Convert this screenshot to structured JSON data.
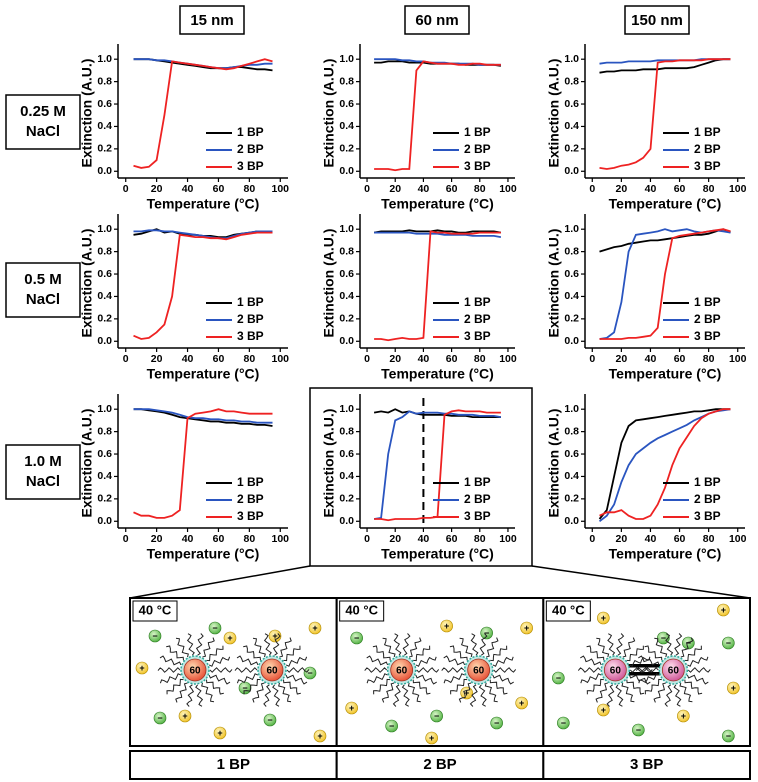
{
  "columns": [
    "15 nm",
    "60 nm",
    "150 nm"
  ],
  "rows": [
    [
      "0.25 M",
      "NaCl"
    ],
    [
      "0.5 M",
      "NaCl"
    ],
    [
      "1.0 M",
      "NaCl"
    ]
  ],
  "chart_data": [
    {
      "type": "line",
      "xlabel": "Temperature (°C)",
      "ylabel": "Extinction (A.U.)",
      "legend": "lower right",
      "x": [
        5,
        10,
        15,
        20,
        25,
        30,
        35,
        40,
        45,
        50,
        55,
        60,
        65,
        70,
        75,
        80,
        85,
        90,
        95
      ],
      "xlim": [
        -5,
        105
      ],
      "ylim": [
        -0.06,
        1.1
      ],
      "xticks": [
        0,
        20,
        40,
        60,
        80,
        100
      ],
      "yticks": [
        {
          "value": 0,
          "label": "0.0"
        },
        0.2,
        0.4,
        0.6,
        0.8,
        {
          "value": 1,
          "label": "1.0"
        }
      ],
      "series": [
        {
          "name": "1 BP",
          "color": "#000000",
          "values": [
            1.0,
            1.0,
            1.0,
            0.99,
            0.98,
            0.97,
            0.96,
            0.95,
            0.94,
            0.93,
            0.92,
            0.92,
            0.92,
            0.93,
            0.93,
            0.92,
            0.91,
            0.91,
            0.9
          ]
        },
        {
          "name": "2 BP",
          "color": "#2a55c0",
          "values": [
            1.0,
            1.0,
            1.0,
            0.99,
            0.99,
            0.98,
            0.97,
            0.96,
            0.95,
            0.94,
            0.93,
            0.92,
            0.92,
            0.93,
            0.94,
            0.95,
            0.95,
            0.96,
            0.96
          ]
        },
        {
          "name": "3 BP",
          "color": "#ee2222",
          "values": [
            0.05,
            0.03,
            0.04,
            0.1,
            0.5,
            0.98,
            0.97,
            0.96,
            0.95,
            0.94,
            0.93,
            0.92,
            0.91,
            0.92,
            0.94,
            0.96,
            0.98,
            1.0,
            0.98
          ]
        }
      ]
    },
    {
      "type": "line",
      "xlabel": "Temperature (°C)",
      "ylabel": "Extinction (A.U.)",
      "legend": "lower right",
      "x": [
        5,
        10,
        15,
        20,
        25,
        30,
        35,
        40,
        45,
        50,
        55,
        60,
        65,
        70,
        75,
        80,
        85,
        90,
        95
      ],
      "xlim": [
        -5,
        105
      ],
      "ylim": [
        -0.06,
        1.1
      ],
      "xticks": [
        0,
        20,
        40,
        60,
        80,
        100
      ],
      "yticks": [
        {
          "value": 0,
          "label": "0.0"
        },
        0.2,
        0.4,
        0.6,
        0.8,
        {
          "value": 1,
          "label": "1.0"
        }
      ],
      "series": [
        {
          "name": "1 BP",
          "color": "#000000",
          "values": [
            0.97,
            0.97,
            0.98,
            0.98,
            0.98,
            0.97,
            0.97,
            0.97,
            0.96,
            0.96,
            0.96,
            0.96,
            0.96,
            0.95,
            0.95,
            0.95,
            0.95,
            0.95,
            0.94
          ]
        },
        {
          "name": "2 BP",
          "color": "#2a55c0",
          "values": [
            1.0,
            1.0,
            1.0,
            1.0,
            0.99,
            0.99,
            0.98,
            0.98,
            0.97,
            0.97,
            0.97,
            0.96,
            0.96,
            0.96,
            0.96,
            0.95,
            0.95,
            0.95,
            0.95
          ]
        },
        {
          "name": "3 BP",
          "color": "#ee2222",
          "values": [
            0.02,
            0.02,
            0.02,
            0.01,
            0.02,
            0.02,
            0.9,
            0.98,
            0.97,
            0.96,
            0.96,
            0.96,
            0.95,
            0.95,
            0.96,
            0.96,
            0.95,
            0.95,
            0.95
          ]
        }
      ]
    },
    {
      "type": "line",
      "xlabel": "Temperature (°C)",
      "ylabel": "Extinction (A.U.)",
      "legend": "lower right",
      "x": [
        5,
        10,
        15,
        20,
        25,
        30,
        35,
        40,
        45,
        50,
        55,
        60,
        65,
        70,
        75,
        80,
        85,
        90,
        95
      ],
      "xlim": [
        -5,
        105
      ],
      "ylim": [
        -0.06,
        1.1
      ],
      "xticks": [
        0,
        20,
        40,
        60,
        80,
        100
      ],
      "yticks": [
        {
          "value": 0,
          "label": "0.0"
        },
        0.2,
        0.4,
        0.6,
        0.8,
        {
          "value": 1,
          "label": "1.0"
        }
      ],
      "series": [
        {
          "name": "1 BP",
          "color": "#000000",
          "values": [
            0.88,
            0.89,
            0.89,
            0.9,
            0.9,
            0.9,
            0.91,
            0.91,
            0.91,
            0.92,
            0.92,
            0.92,
            0.92,
            0.93,
            0.95,
            0.97,
            0.99,
            1.0,
            1.0
          ]
        },
        {
          "name": "2 BP",
          "color": "#2a55c0",
          "values": [
            0.96,
            0.97,
            0.97,
            0.97,
            0.98,
            0.98,
            0.98,
            0.98,
            0.99,
            0.99,
            0.99,
            0.99,
            0.99,
            0.99,
            1.0,
            1.0,
            1.0,
            1.0,
            1.0
          ]
        },
        {
          "name": "3 BP",
          "color": "#ee2222",
          "values": [
            0.03,
            0.02,
            0.03,
            0.05,
            0.06,
            0.08,
            0.12,
            0.2,
            0.97,
            0.98,
            0.98,
            0.99,
            0.99,
            0.99,
            0.99,
            1.0,
            1.0,
            1.0,
            1.0
          ]
        }
      ]
    },
    {
      "type": "line",
      "xlabel": "Temperature (°C)",
      "ylabel": "Extinction (A.U.)",
      "legend": "lower right",
      "x": [
        5,
        10,
        15,
        20,
        25,
        30,
        35,
        40,
        45,
        50,
        55,
        60,
        65,
        70,
        75,
        80,
        85,
        90,
        95
      ],
      "xlim": [
        -5,
        105
      ],
      "ylim": [
        -0.06,
        1.1
      ],
      "xticks": [
        0,
        20,
        40,
        60,
        80,
        100
      ],
      "yticks": [
        {
          "value": 0,
          "label": "0.0"
        },
        0.2,
        0.4,
        0.6,
        0.8,
        {
          "value": 1,
          "label": "1.0"
        }
      ],
      "series": [
        {
          "name": "1 BP",
          "color": "#000000",
          "values": [
            0.95,
            0.96,
            0.98,
            1.0,
            0.97,
            0.98,
            0.96,
            0.95,
            0.95,
            0.94,
            0.94,
            0.93,
            0.93,
            0.95,
            0.96,
            0.97,
            0.98,
            0.98,
            0.98
          ]
        },
        {
          "name": "2 BP",
          "color": "#2a55c0",
          "values": [
            0.98,
            0.98,
            0.99,
            0.99,
            0.98,
            0.98,
            0.97,
            0.96,
            0.95,
            0.94,
            0.93,
            0.92,
            0.92,
            0.94,
            0.96,
            0.97,
            0.98,
            0.98,
            0.98
          ]
        },
        {
          "name": "3 BP",
          "color": "#ee2222",
          "values": [
            0.05,
            0.02,
            0.03,
            0.08,
            0.15,
            0.4,
            0.95,
            0.94,
            0.93,
            0.93,
            0.92,
            0.92,
            0.91,
            0.93,
            0.95,
            0.96,
            0.97,
            0.97,
            0.97
          ]
        }
      ]
    },
    {
      "type": "line",
      "xlabel": "Temperature (°C)",
      "ylabel": "Extinction (A.U.)",
      "legend": "lower right",
      "x": [
        5,
        10,
        15,
        20,
        25,
        30,
        35,
        40,
        45,
        50,
        55,
        60,
        65,
        70,
        75,
        80,
        85,
        90,
        95
      ],
      "xlim": [
        -5,
        105
      ],
      "ylim": [
        -0.06,
        1.1
      ],
      "xticks": [
        0,
        20,
        40,
        60,
        80,
        100
      ],
      "yticks": [
        {
          "value": 0,
          "label": "0.0"
        },
        0.2,
        0.4,
        0.6,
        0.8,
        {
          "value": 1,
          "label": "1.0"
        }
      ],
      "series": [
        {
          "name": "1 BP",
          "color": "#000000",
          "values": [
            0.97,
            0.98,
            0.98,
            0.98,
            0.98,
            0.99,
            0.98,
            0.98,
            0.98,
            0.99,
            0.98,
            0.98,
            0.97,
            0.97,
            0.98,
            0.98,
            0.98,
            0.98,
            0.97
          ]
        },
        {
          "name": "2 BP",
          "color": "#2a55c0",
          "values": [
            0.97,
            0.97,
            0.97,
            0.97,
            0.97,
            0.97,
            0.96,
            0.96,
            0.96,
            0.96,
            0.95,
            0.95,
            0.95,
            0.95,
            0.94,
            0.94,
            0.94,
            0.94,
            0.93
          ]
        },
        {
          "name": "3 BP",
          "color": "#ee2222",
          "values": [
            0.02,
            0.02,
            0.01,
            0.02,
            0.03,
            0.02,
            0.02,
            0.03,
            0.98,
            0.97,
            0.97,
            0.96,
            0.96,
            0.96,
            0.96,
            0.97,
            0.97,
            0.97,
            0.97
          ]
        }
      ]
    },
    {
      "type": "line",
      "xlabel": "Temperature (°C)",
      "ylabel": "Extinction (A.U.)",
      "legend": "lower right",
      "x": [
        5,
        10,
        15,
        20,
        25,
        30,
        35,
        40,
        45,
        50,
        55,
        60,
        65,
        70,
        75,
        80,
        85,
        90,
        95
      ],
      "xlim": [
        -5,
        105
      ],
      "ylim": [
        -0.06,
        1.1
      ],
      "xticks": [
        0,
        20,
        40,
        60,
        80,
        100
      ],
      "yticks": [
        {
          "value": 0,
          "label": "0.0"
        },
        0.2,
        0.4,
        0.6,
        0.8,
        {
          "value": 1,
          "label": "1.0"
        }
      ],
      "series": [
        {
          "name": "1 BP",
          "color": "#000000",
          "values": [
            0.8,
            0.82,
            0.84,
            0.85,
            0.87,
            0.88,
            0.89,
            0.9,
            0.9,
            0.91,
            0.92,
            0.93,
            0.94,
            0.95,
            0.95,
            0.96,
            0.98,
            1.0,
            0.97
          ]
        },
        {
          "name": "2 BP",
          "color": "#2a55c0",
          "values": [
            0.02,
            0.03,
            0.08,
            0.35,
            0.8,
            0.95,
            0.96,
            0.97,
            0.98,
            1.0,
            0.98,
            0.99,
            1.0,
            0.98,
            0.97,
            0.98,
            0.99,
            0.98,
            0.97
          ]
        },
        {
          "name": "3 BP",
          "color": "#ee2222",
          "values": [
            0.02,
            0.02,
            0.02,
            0.02,
            0.03,
            0.03,
            0.04,
            0.05,
            0.12,
            0.6,
            0.92,
            0.94,
            0.95,
            0.96,
            0.97,
            0.98,
            0.99,
            1.0,
            0.98
          ]
        }
      ]
    },
    {
      "type": "line",
      "xlabel": "Temperature (°C)",
      "ylabel": "Extinction (A.U.)",
      "legend": "lower right",
      "x": [
        5,
        10,
        15,
        20,
        25,
        30,
        35,
        40,
        45,
        50,
        55,
        60,
        65,
        70,
        75,
        80,
        85,
        90,
        95
      ],
      "xlim": [
        -5,
        105
      ],
      "ylim": [
        -0.06,
        1.1
      ],
      "xticks": [
        0,
        20,
        40,
        60,
        80,
        100
      ],
      "yticks": [
        {
          "value": 0,
          "label": "0.0"
        },
        0.2,
        0.4,
        0.6,
        0.8,
        {
          "value": 1,
          "label": "1.0"
        }
      ],
      "series": [
        {
          "name": "1 BP",
          "color": "#000000",
          "values": [
            1.0,
            1.0,
            0.99,
            0.98,
            0.97,
            0.95,
            0.93,
            0.92,
            0.91,
            0.9,
            0.89,
            0.89,
            0.88,
            0.88,
            0.87,
            0.87,
            0.86,
            0.86,
            0.85
          ]
        },
        {
          "name": "2 BP",
          "color": "#2a55c0",
          "values": [
            1.0,
            1.0,
            1.0,
            0.99,
            0.98,
            0.97,
            0.95,
            0.93,
            0.92,
            0.92,
            0.91,
            0.91,
            0.9,
            0.9,
            0.89,
            0.89,
            0.88,
            0.88,
            0.88
          ]
        },
        {
          "name": "3 BP",
          "color": "#ee2222",
          "values": [
            0.08,
            0.05,
            0.05,
            0.03,
            0.03,
            0.05,
            0.1,
            0.92,
            0.96,
            0.97,
            0.98,
            1.0,
            0.98,
            0.98,
            0.97,
            0.96,
            0.96,
            0.96,
            0.96
          ]
        }
      ]
    },
    {
      "type": "line",
      "xlabel": "Temperature (°C)",
      "ylabel": "Extinction (A.U.)",
      "legend": "lower right",
      "marker_x": 40,
      "x": [
        5,
        10,
        15,
        20,
        25,
        30,
        35,
        40,
        45,
        50,
        55,
        60,
        65,
        70,
        75,
        80,
        85,
        90,
        95
      ],
      "xlim": [
        -5,
        105
      ],
      "ylim": [
        -0.06,
        1.1
      ],
      "xticks": [
        0,
        20,
        40,
        60,
        80,
        100
      ],
      "yticks": [
        {
          "value": 0,
          "label": "0.0"
        },
        0.2,
        0.4,
        0.6,
        0.8,
        {
          "value": 1,
          "label": "1.0"
        }
      ],
      "series": [
        {
          "name": "1 BP",
          "color": "#000000",
          "values": [
            0.97,
            0.98,
            0.97,
            1.0,
            0.97,
            0.98,
            0.96,
            0.95,
            0.95,
            0.95,
            0.95,
            0.94,
            0.94,
            0.94,
            0.93,
            0.93,
            0.93,
            0.93,
            0.93
          ]
        },
        {
          "name": "2 BP",
          "color": "#2a55c0",
          "values": [
            0.02,
            0.03,
            0.6,
            0.9,
            0.93,
            0.98,
            0.96,
            0.97,
            0.97,
            0.97,
            0.96,
            0.96,
            0.95,
            0.95,
            0.95,
            0.94,
            0.94,
            0.94,
            0.93
          ]
        },
        {
          "name": "3 BP",
          "color": "#ee2222",
          "values": [
            0.02,
            0.02,
            0.01,
            0.02,
            0.02,
            0.02,
            0.02,
            0.03,
            0.03,
            0.04,
            0.95,
            0.98,
            0.99,
            0.98,
            0.98,
            0.98,
            0.97,
            0.97,
            0.97
          ]
        }
      ]
    },
    {
      "type": "line",
      "xlabel": "Temperature (°C)",
      "ylabel": "Extinction (A.U.)",
      "legend": "lower right",
      "x": [
        5,
        10,
        15,
        20,
        25,
        30,
        35,
        40,
        45,
        50,
        55,
        60,
        65,
        70,
        75,
        80,
        85,
        90,
        95
      ],
      "xlim": [
        -5,
        105
      ],
      "ylim": [
        -0.06,
        1.1
      ],
      "xticks": [
        0,
        20,
        40,
        60,
        80,
        100
      ],
      "yticks": [
        {
          "value": 0,
          "label": "0.0"
        },
        0.2,
        0.4,
        0.6,
        0.8,
        {
          "value": 1,
          "label": "1.0"
        }
      ],
      "series": [
        {
          "name": "1 BP",
          "color": "#000000",
          "values": [
            0.02,
            0.1,
            0.4,
            0.7,
            0.85,
            0.9,
            0.91,
            0.92,
            0.93,
            0.94,
            0.95,
            0.96,
            0.97,
            0.98,
            0.98,
            0.99,
            1.0,
            1.0,
            1.0
          ]
        },
        {
          "name": "2 BP",
          "color": "#2a55c0",
          "values": [
            0.0,
            0.05,
            0.15,
            0.35,
            0.5,
            0.6,
            0.65,
            0.7,
            0.74,
            0.77,
            0.8,
            0.83,
            0.86,
            0.9,
            0.93,
            0.96,
            0.98,
            0.99,
            1.0
          ]
        },
        {
          "name": "3 BP",
          "color": "#ee2222",
          "values": [
            0.05,
            0.08,
            0.08,
            0.1,
            0.05,
            0.02,
            0.02,
            0.05,
            0.15,
            0.3,
            0.5,
            0.65,
            0.75,
            0.85,
            0.92,
            0.96,
            0.98,
            1.0,
            1.0
          ]
        }
      ]
    }
  ],
  "diagram": {
    "temperature_label": "40 °C",
    "particle_label": "60",
    "cation": "+",
    "anion": "−",
    "panels": [
      "1 BP",
      "2 BP",
      "3 BP"
    ]
  }
}
